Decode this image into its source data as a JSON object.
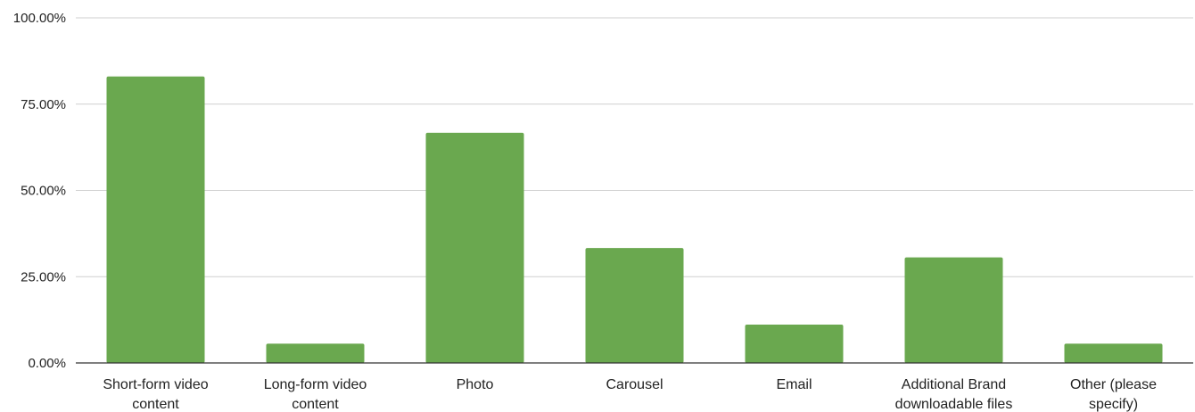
{
  "chart_data": {
    "type": "bar",
    "title": "",
    "xlabel": "",
    "ylabel": "",
    "categories": [
      [
        "Short-form video",
        "content"
      ],
      [
        "Long-form video",
        "content"
      ],
      [
        "Photo"
      ],
      [
        "Carousel"
      ],
      [
        "Email"
      ],
      [
        "Additional Brand",
        "downloadable files"
      ],
      [
        "Other (please",
        "specify)"
      ]
    ],
    "values": [
      83.0,
      5.6,
      66.7,
      33.3,
      11.1,
      30.6,
      5.6
    ],
    "ylim": [
      0,
      100
    ],
    "yticks": [
      0,
      25,
      50,
      75,
      100
    ],
    "ytick_labels": [
      "0.00%",
      "25.00%",
      "50.00%",
      "75.00%",
      "100.00%"
    ],
    "grid": true,
    "legend": "none",
    "bar_color": "#6aa84f"
  }
}
